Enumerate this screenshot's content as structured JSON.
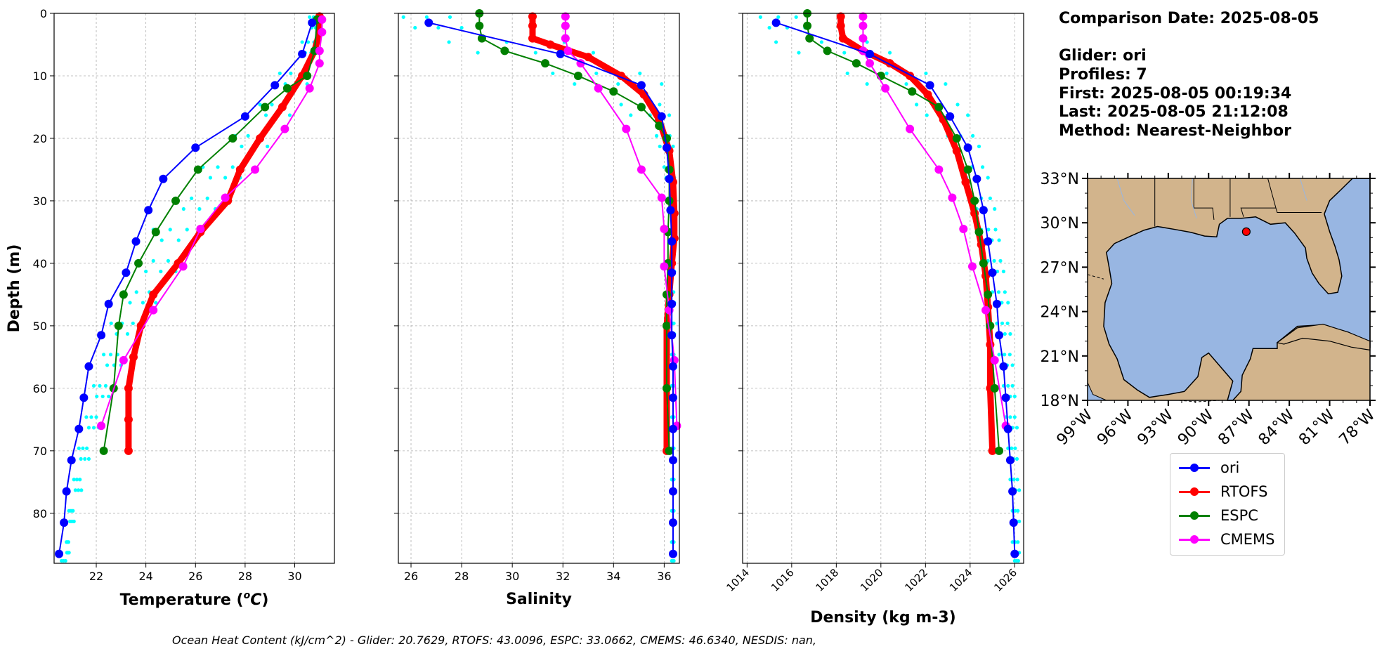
{
  "info": {
    "comparison_date": "Comparison Date: 2025-08-05",
    "glider": "Glider: ori",
    "profiles": "Profiles: 7",
    "first": "First: 2025-08-05 00:19:34",
    "last": "Last: 2025-08-05 21:12:08",
    "method": "Method: Nearest-Neighbor"
  },
  "footer": "Ocean Heat Content (kJ/cm^2) - Glider: 20.7629,  RTOFS: 43.0096,  ESPC: 33.0662,  CMEMS: 46.6340,  NESDIS: nan,",
  "colors": {
    "ori": "#0000ff",
    "RTOFS": "#ff0000",
    "ESPC": "#008000",
    "CMEMS": "#ff00ff",
    "raw_glider": "#00ffff",
    "land": "#d2b48c",
    "ocean": "#98b6e2",
    "grid": "#b0b0b0"
  },
  "legend": [
    {
      "key": "ori",
      "label": "ori"
    },
    {
      "key": "RTOFS",
      "label": "RTOFS"
    },
    {
      "key": "ESPC",
      "label": "ESPC"
    },
    {
      "key": "CMEMS",
      "label": "CMEMS"
    }
  ],
  "chart_data": [
    {
      "type": "line",
      "xlabel": "Temperature",
      "xlabel_unit_prefix": "o",
      "xlabel_unit": "C",
      "ylabel": "Depth (m)",
      "xlim": [
        20.3,
        31.6
      ],
      "ylim": [
        88,
        0
      ],
      "xticks": [
        22,
        24,
        26,
        28,
        30
      ],
      "yticks": [
        0,
        10,
        20,
        30,
        40,
        50,
        60,
        70,
        80
      ],
      "grid": true,
      "series": [
        {
          "name": "ori",
          "points": [
            [
              30.7,
              1.5
            ],
            [
              30.3,
              6.5
            ],
            [
              29.2,
              11.5
            ],
            [
              28.0,
              16.5
            ],
            [
              26.0,
              21.5
            ],
            [
              24.7,
              26.5
            ],
            [
              24.1,
              31.5
            ],
            [
              23.6,
              36.5
            ],
            [
              23.2,
              41.5
            ],
            [
              22.5,
              46.5
            ],
            [
              22.2,
              51.5
            ],
            [
              21.7,
              56.5
            ],
            [
              21.5,
              61.5
            ],
            [
              21.3,
              66.5
            ],
            [
              21.0,
              71.5
            ],
            [
              20.8,
              76.5
            ],
            [
              20.7,
              81.5
            ],
            [
              20.5,
              86.5
            ]
          ]
        },
        {
          "name": "RTOFS",
          "points": [
            [
              31.0,
              0.5
            ],
            [
              31.0,
              3
            ],
            [
              30.8,
              6
            ],
            [
              30.3,
              10
            ],
            [
              29.5,
              15
            ],
            [
              28.6,
              20
            ],
            [
              27.8,
              25
            ],
            [
              27.3,
              30
            ],
            [
              26.2,
              35
            ],
            [
              25.3,
              40
            ],
            [
              24.3,
              45
            ],
            [
              23.8,
              50
            ],
            [
              23.5,
              55
            ],
            [
              23.3,
              60
            ],
            [
              23.3,
              65
            ],
            [
              23.3,
              70
            ]
          ]
        },
        {
          "name": "ESPC",
          "points": [
            [
              30.9,
              1
            ],
            [
              30.8,
              6
            ],
            [
              30.5,
              10
            ],
            [
              29.7,
              12
            ],
            [
              28.8,
              15
            ],
            [
              27.5,
              20
            ],
            [
              26.1,
              25
            ],
            [
              25.2,
              30
            ],
            [
              24.4,
              35
            ],
            [
              23.7,
              40
            ],
            [
              23.1,
              45
            ],
            [
              22.9,
              50
            ],
            [
              22.7,
              60
            ],
            [
              22.3,
              70
            ]
          ]
        },
        {
          "name": "CMEMS",
          "points": [
            [
              31.1,
              1
            ],
            [
              31.1,
              3
            ],
            [
              31.0,
              6
            ],
            [
              31.0,
              8
            ],
            [
              30.6,
              12
            ],
            [
              29.6,
              18.5
            ],
            [
              28.4,
              25
            ],
            [
              27.2,
              29.5
            ],
            [
              26.2,
              34.5
            ],
            [
              25.5,
              40.5
            ],
            [
              24.3,
              47.5
            ],
            [
              23.1,
              55.5
            ],
            [
              22.2,
              66
            ]
          ]
        }
      ],
      "raw": {
        "name": "glider raw",
        "x0": [
          30.6,
          30.3,
          29.4,
          28.6,
          27.6,
          26.3,
          25.2,
          24.3,
          23.7,
          23.1,
          22.6,
          22.3,
          21.9,
          21.6,
          21.3,
          21.1,
          20.9,
          20.8,
          20.6
        ],
        "x1": [
          31.0,
          30.9,
          30.5,
          29.8,
          28.9,
          27.8,
          26.8,
          26.0,
          25.2,
          24.4,
          23.7,
          23.0,
          22.5,
          22.1,
          21.7,
          21.4,
          21.1,
          20.9,
          20.8
        ],
        "depth": [
          1,
          5,
          10,
          15,
          20,
          25,
          30,
          35,
          40,
          45,
          50,
          55,
          60,
          65,
          70,
          75,
          80,
          85,
          88
        ]
      }
    },
    {
      "type": "line",
      "xlabel": "Salinity",
      "xlim": [
        25.5,
        36.6
      ],
      "ylim": [
        88,
        0
      ],
      "xticks": [
        26,
        28,
        30,
        32,
        34,
        36
      ],
      "grid": true,
      "series": [
        {
          "name": "ori",
          "points": [
            [
              26.7,
              1.5
            ],
            [
              31.9,
              6.5
            ],
            [
              35.1,
              11.5
            ],
            [
              35.9,
              16.5
            ],
            [
              36.1,
              21.5
            ],
            [
              36.2,
              26.5
            ],
            [
              36.25,
              31.5
            ],
            [
              36.3,
              36.5
            ],
            [
              36.3,
              41.5
            ],
            [
              36.3,
              46.5
            ],
            [
              36.3,
              51.5
            ],
            [
              36.35,
              56.5
            ],
            [
              36.35,
              61.5
            ],
            [
              36.35,
              66.5
            ],
            [
              36.35,
              71.5
            ],
            [
              36.35,
              76.5
            ],
            [
              36.35,
              81.5
            ],
            [
              36.35,
              86.5
            ]
          ]
        },
        {
          "name": "RTOFS",
          "points": [
            [
              30.8,
              0.5
            ],
            [
              30.8,
              2
            ],
            [
              30.8,
              4
            ],
            [
              31.5,
              5
            ],
            [
              33.0,
              7
            ],
            [
              34.3,
              10
            ],
            [
              35.2,
              13
            ],
            [
              35.8,
              17
            ],
            [
              36.2,
              22
            ],
            [
              36.35,
              27
            ],
            [
              36.4,
              32
            ],
            [
              36.4,
              36
            ],
            [
              36.3,
              40
            ],
            [
              36.2,
              45
            ],
            [
              36.1,
              50
            ],
            [
              36.1,
              60
            ],
            [
              36.1,
              70
            ]
          ]
        },
        {
          "name": "ESPC",
          "points": [
            [
              28.7,
              0
            ],
            [
              28.7,
              2
            ],
            [
              28.8,
              4
            ],
            [
              29.7,
              6
            ],
            [
              31.3,
              8
            ],
            [
              32.6,
              10
            ],
            [
              34.0,
              12.5
            ],
            [
              35.1,
              15
            ],
            [
              35.8,
              18
            ],
            [
              36.1,
              20
            ],
            [
              36.2,
              25
            ],
            [
              36.2,
              30
            ],
            [
              36.15,
              35
            ],
            [
              36.15,
              40
            ],
            [
              36.1,
              45
            ],
            [
              36.1,
              50
            ],
            [
              36.1,
              60
            ],
            [
              36.2,
              70
            ]
          ]
        },
        {
          "name": "CMEMS",
          "points": [
            [
              32.1,
              0.5
            ],
            [
              32.1,
              2
            ],
            [
              32.1,
              4
            ],
            [
              32.2,
              6
            ],
            [
              32.7,
              8
            ],
            [
              33.4,
              12
            ],
            [
              34.5,
              18.5
            ],
            [
              35.1,
              25
            ],
            [
              35.9,
              29.5
            ],
            [
              36.0,
              34.5
            ],
            [
              36.0,
              40.5
            ],
            [
              36.2,
              47.5
            ],
            [
              36.4,
              55.5
            ],
            [
              36.5,
              66
            ]
          ]
        }
      ],
      "raw": {
        "name": "glider raw",
        "x0": [
          25.7,
          27.5,
          31.6,
          34.3,
          35.7,
          36.0,
          36.15,
          36.2,
          36.25,
          36.25,
          36.3,
          36.3,
          36.3,
          36.3,
          36.3,
          36.3,
          36.3,
          36.3,
          36.3
        ],
        "x1": [
          28.0,
          33.2,
          35.9,
          36.2,
          36.35,
          36.4,
          36.4,
          36.4,
          36.4,
          36.4,
          36.4,
          36.4,
          36.4,
          36.4,
          36.4,
          36.4,
          36.4,
          36.4,
          36.4
        ],
        "depth": [
          1,
          5,
          10,
          15,
          20,
          25,
          30,
          35,
          40,
          45,
          50,
          55,
          60,
          65,
          70,
          75,
          80,
          85,
          88
        ]
      }
    },
    {
      "type": "line",
      "xlabel": "Density (kg m-3)",
      "xlim": [
        1013.8,
        1026.4
      ],
      "ylim": [
        88,
        0
      ],
      "xticks": [
        1014,
        1016,
        1018,
        1020,
        1022,
        1024,
        1026
      ],
      "grid": true,
      "series": [
        {
          "name": "ori",
          "points": [
            [
              1015.3,
              1.5
            ],
            [
              1019.5,
              6.5
            ],
            [
              1022.2,
              11.5
            ],
            [
              1023.1,
              16.5
            ],
            [
              1023.9,
              21.5
            ],
            [
              1024.3,
              26.5
            ],
            [
              1024.6,
              31.5
            ],
            [
              1024.8,
              36.5
            ],
            [
              1025.0,
              41.5
            ],
            [
              1025.2,
              46.5
            ],
            [
              1025.3,
              51.5
            ],
            [
              1025.5,
              56.5
            ],
            [
              1025.6,
              61.5
            ],
            [
              1025.7,
              66.5
            ],
            [
              1025.8,
              71.5
            ],
            [
              1025.9,
              76.5
            ],
            [
              1025.95,
              81.5
            ],
            [
              1026.0,
              86.5
            ]
          ]
        },
        {
          "name": "RTOFS",
          "points": [
            [
              1018.2,
              0.5
            ],
            [
              1018.2,
              2
            ],
            [
              1018.3,
              4
            ],
            [
              1019.2,
              6
            ],
            [
              1020.4,
              8
            ],
            [
              1021.3,
              10
            ],
            [
              1022.1,
              13
            ],
            [
              1022.8,
              17
            ],
            [
              1023.4,
              22
            ],
            [
              1023.8,
              27
            ],
            [
              1024.2,
              32
            ],
            [
              1024.5,
              37
            ],
            [
              1024.7,
              42
            ],
            [
              1024.8,
              47
            ],
            [
              1024.9,
              53
            ],
            [
              1024.9,
              60
            ],
            [
              1025.0,
              70
            ]
          ]
        },
        {
          "name": "ESPC",
          "points": [
            [
              1016.7,
              0
            ],
            [
              1016.7,
              2
            ],
            [
              1016.8,
              4
            ],
            [
              1017.6,
              6
            ],
            [
              1018.9,
              8
            ],
            [
              1020.0,
              10
            ],
            [
              1021.4,
              12.5
            ],
            [
              1022.6,
              15
            ],
            [
              1023.4,
              20
            ],
            [
              1023.9,
              25
            ],
            [
              1024.2,
              30
            ],
            [
              1024.4,
              35
            ],
            [
              1024.6,
              40
            ],
            [
              1024.8,
              45
            ],
            [
              1024.9,
              50
            ],
            [
              1025.1,
              60
            ],
            [
              1025.3,
              70
            ]
          ]
        },
        {
          "name": "CMEMS",
          "points": [
            [
              1019.2,
              0.5
            ],
            [
              1019.2,
              2
            ],
            [
              1019.2,
              4
            ],
            [
              1019.2,
              6
            ],
            [
              1019.5,
              8
            ],
            [
              1020.2,
              12
            ],
            [
              1021.3,
              18.5
            ],
            [
              1022.6,
              25
            ],
            [
              1023.2,
              29.5
            ],
            [
              1023.7,
              34.5
            ],
            [
              1024.1,
              40.5
            ],
            [
              1024.7,
              47.5
            ],
            [
              1025.1,
              55.5
            ],
            [
              1025.6,
              66
            ]
          ]
        }
      ],
      "raw": {
        "name": "glider raw",
        "x0": [
          1014.6,
          1015.3,
          1018.5,
          1021.6,
          1023.0,
          1023.6,
          1024.1,
          1024.5,
          1024.8,
          1025.0,
          1025.2,
          1025.3,
          1025.5,
          1025.6,
          1025.7,
          1025.8,
          1025.9,
          1025.9,
          1026.0
        ],
        "x1": [
          1016.6,
          1020.4,
          1022.9,
          1023.9,
          1024.4,
          1024.8,
          1025.1,
          1025.3,
          1025.5,
          1025.7,
          1025.8,
          1025.9,
          1026.0,
          1026.1,
          1026.1,
          1026.2,
          1026.2,
          1026.2,
          1026.2
        ],
        "depth": [
          1,
          5,
          10,
          15,
          20,
          25,
          30,
          35,
          40,
          45,
          50,
          55,
          60,
          65,
          70,
          75,
          80,
          85,
          88
        ]
      }
    },
    {
      "type": "map",
      "lon_ticks": [
        "99°W",
        "96°W",
        "93°W",
        "90°W",
        "87°W",
        "84°W",
        "81°W",
        "78°W"
      ],
      "lat_ticks": [
        "33°N",
        "30°N",
        "27°N",
        "24°N",
        "21°N",
        "18°N"
      ],
      "lon_range": [
        -99,
        -78
      ],
      "lat_range": [
        18,
        33
      ],
      "glider_position": {
        "lon": -87.2,
        "lat": 29.4
      }
    }
  ]
}
